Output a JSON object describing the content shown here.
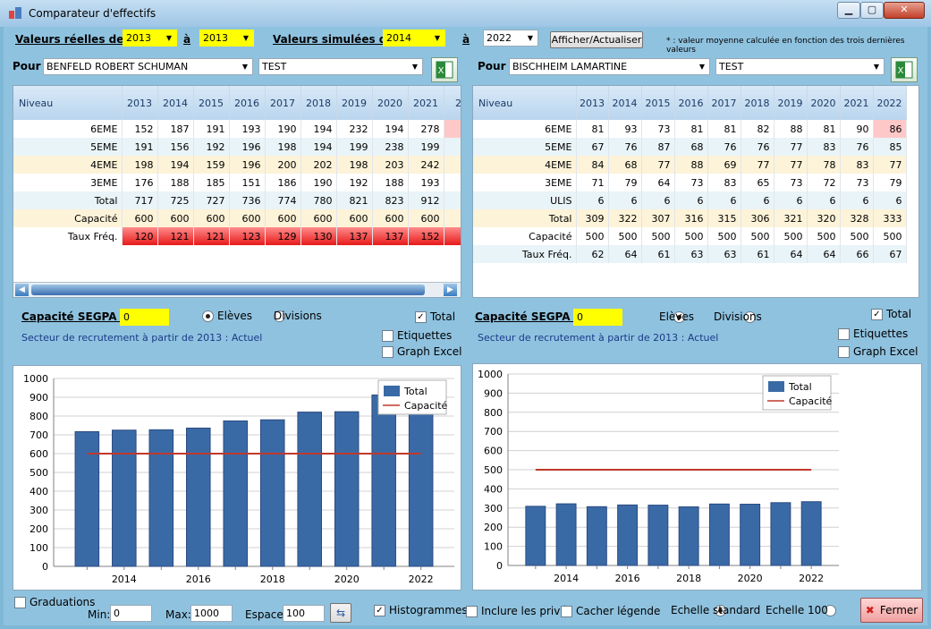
{
  "window": {
    "title": "Comparateur d'effectifs",
    "min": "▁",
    "max": "▢",
    "close": "✕"
  },
  "top": {
    "real_label": "Valeurs réelles de :",
    "real_from": "2013",
    "to1": "à",
    "real_to": "2013",
    "sim_label": "Valeurs simulées de",
    "sim_from": "2014",
    "to2": "à",
    "sim_to": "2022",
    "refresh": "Afficher/Actualiser",
    "note": "*   : valeur moyenne calculée en fonction des trois dernières valeurs"
  },
  "colors": {
    "bar": "#3a6aa6",
    "capacity": "#c0392b",
    "red": "#e81a1a",
    "yellow": "#ffff00"
  },
  "left": {
    "pour": "Pour",
    "school": "BENFELD ROBERT SCHUMAN",
    "scenario": "TEST",
    "headers": [
      "Niveau",
      "2013",
      "2014",
      "2015",
      "2016",
      "2017",
      "2018",
      "2019",
      "2020",
      "2021",
      "20"
    ],
    "rows": [
      {
        "label": "6EME",
        "values": [
          "152",
          "187",
          "191",
          "193",
          "190",
          "194",
          "232",
          "194",
          "278",
          ""
        ]
      },
      {
        "label": "5EME",
        "values": [
          "191",
          "156",
          "192",
          "196",
          "198",
          "194",
          "199",
          "238",
          "199",
          ""
        ]
      },
      {
        "label": "4EME",
        "values": [
          "198",
          "194",
          "159",
          "196",
          "200",
          "202",
          "198",
          "203",
          "242",
          ""
        ]
      },
      {
        "label": "3EME",
        "values": [
          "176",
          "188",
          "185",
          "151",
          "186",
          "190",
          "192",
          "188",
          "193",
          ""
        ]
      },
      {
        "label": "Total",
        "values": [
          "717",
          "725",
          "727",
          "736",
          "774",
          "780",
          "821",
          "823",
          "912",
          ""
        ]
      },
      {
        "label": "Capacité",
        "values": [
          "600",
          "600",
          "600",
          "600",
          "600",
          "600",
          "600",
          "600",
          "600",
          ""
        ]
      },
      {
        "label": "Taux Fréq.",
        "values": [
          "120",
          "121",
          "121",
          "123",
          "129",
          "130",
          "137",
          "137",
          "152",
          ""
        ]
      }
    ],
    "segpa_label": "Capacité SEGPA :",
    "segpa_value": "0",
    "eleves": "Elèves",
    "divisions": "Divisions",
    "total": "Total",
    "secteur": "Secteur de recrutement à partir de 2013 : Actuel",
    "etiquettes": "Etiquettes",
    "graph_excel": "Graph Excel"
  },
  "right": {
    "pour": "Pour",
    "school": "BISCHHEIM LAMARTINE",
    "scenario": "TEST",
    "headers": [
      "Niveau",
      "2013",
      "2014",
      "2015",
      "2016",
      "2017",
      "2018",
      "2019",
      "2020",
      "2021",
      "2022"
    ],
    "rows": [
      {
        "label": "6EME",
        "values": [
          "81",
          "93",
          "73",
          "81",
          "81",
          "82",
          "88",
          "81",
          "90",
          "86"
        ]
      },
      {
        "label": "5EME",
        "values": [
          "67",
          "76",
          "87",
          "68",
          "76",
          "76",
          "77",
          "83",
          "76",
          "85"
        ]
      },
      {
        "label": "4EME",
        "values": [
          "84",
          "68",
          "77",
          "88",
          "69",
          "77",
          "77",
          "78",
          "83",
          "77"
        ]
      },
      {
        "label": "3EME",
        "values": [
          "71",
          "79",
          "64",
          "73",
          "83",
          "65",
          "73",
          "72",
          "73",
          "79"
        ]
      },
      {
        "label": "ULIS",
        "values": [
          "6",
          "6",
          "6",
          "6",
          "6",
          "6",
          "6",
          "6",
          "6",
          "6"
        ]
      },
      {
        "label": "Total",
        "values": [
          "309",
          "322",
          "307",
          "316",
          "315",
          "306",
          "321",
          "320",
          "328",
          "333"
        ]
      },
      {
        "label": "Capacité",
        "values": [
          "500",
          "500",
          "500",
          "500",
          "500",
          "500",
          "500",
          "500",
          "500",
          "500"
        ]
      },
      {
        "label": "Taux Fréq.",
        "values": [
          "62",
          "64",
          "61",
          "63",
          "63",
          "61",
          "64",
          "64",
          "66",
          "67"
        ]
      }
    ],
    "segpa_label": "Capacité SEGPA :",
    "segpa_value": "0",
    "eleves": "Elèves",
    "divisions": "Divisions",
    "total": "Total",
    "secteur": "Secteur de recrutement à partir de 2013 : Actuel",
    "etiquettes": "Etiquettes",
    "graph_excel": "Graph Excel"
  },
  "chart_data": [
    {
      "type": "bar",
      "categories": [
        "2013",
        "2014",
        "2015",
        "2016",
        "2017",
        "2018",
        "2019",
        "2020",
        "2021",
        "2022"
      ],
      "x_ticks": [
        "2014",
        "2016",
        "2018",
        "2020",
        "2022"
      ],
      "series": [
        {
          "name": "Total",
          "values": [
            717,
            725,
            727,
            736,
            774,
            780,
            821,
            823,
            912,
            955
          ]
        },
        {
          "name": "Capacité",
          "values": [
            600,
            600,
            600,
            600,
            600,
            600,
            600,
            600,
            600,
            600
          ]
        }
      ],
      "ylim": [
        0,
        1000
      ],
      "yticks": [
        "0",
        "100",
        "200",
        "300",
        "400",
        "500",
        "600",
        "700",
        "800",
        "900",
        "1000"
      ],
      "legend": "top-right",
      "grid": true
    },
    {
      "type": "bar",
      "categories": [
        "2013",
        "2014",
        "2015",
        "2016",
        "2017",
        "2018",
        "2019",
        "2020",
        "2021",
        "2022"
      ],
      "x_ticks": [
        "2014",
        "2016",
        "2018",
        "2020",
        "2022"
      ],
      "series": [
        {
          "name": "Total",
          "values": [
            309,
            322,
            307,
            316,
            315,
            306,
            321,
            320,
            328,
            333
          ]
        },
        {
          "name": "Capacité",
          "values": [
            500,
            500,
            500,
            500,
            500,
            500,
            500,
            500,
            500,
            500
          ]
        }
      ],
      "ylim": [
        0,
        1000
      ],
      "yticks": [
        "0",
        "100",
        "200",
        "300",
        "400",
        "500",
        "600",
        "700",
        "800",
        "900",
        "1000"
      ],
      "legend": "top-right",
      "grid": true
    }
  ],
  "bottom": {
    "graduations": "Graduations",
    "min_label": "Min:",
    "min": "0",
    "max_label": "Max:",
    "max": "1000",
    "espace_label": "Espace:",
    "espace": "100",
    "histogrammes": "Histogrammes",
    "prives": "Inclure les privés",
    "cacher": "Cacher légende",
    "standard": "Echelle standard",
    "echelle100": "Echelle 100",
    "fermer": "Fermer"
  }
}
